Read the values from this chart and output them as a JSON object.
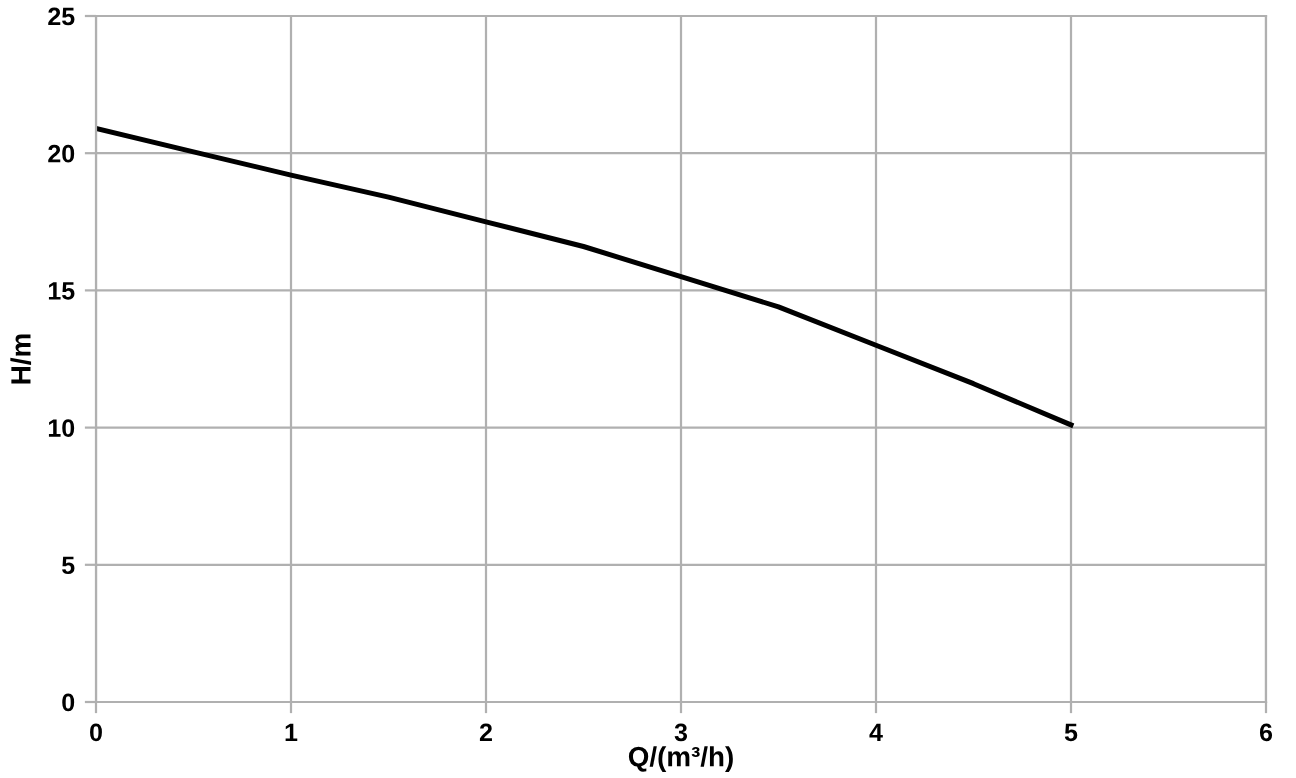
{
  "chart_data": {
    "type": "line",
    "xlabel": "Q/(m³/h)",
    "ylabel": "H/m",
    "x": [
      0,
      0.5,
      1,
      1.5,
      2,
      2.5,
      3,
      3.5,
      4,
      4.5,
      5
    ],
    "series": [
      {
        "color": "#000000",
        "values": [
          20.9,
          20.05,
          19.2,
          18.4,
          17.5,
          16.6,
          15.5,
          14.4,
          13.0,
          11.6,
          10.1
        ]
      }
    ],
    "xlim": [
      0,
      6
    ],
    "xticks": [
      0,
      1,
      2,
      3,
      4,
      5,
      6
    ],
    "ylim": [
      0,
      25
    ],
    "yticks": [
      0,
      5,
      10,
      15,
      20,
      25
    ],
    "grid": true,
    "legend": false,
    "marker": "none",
    "line_style": "solid"
  }
}
